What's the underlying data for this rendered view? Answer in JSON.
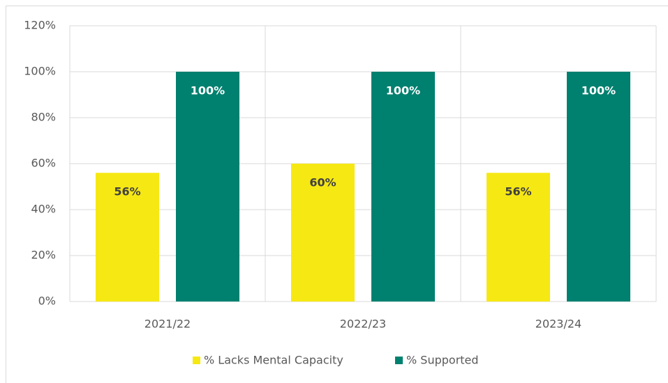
{
  "chart_data": {
    "type": "bar",
    "categories": [
      "2021/22",
      "2022/23",
      "2023/24"
    ],
    "series": [
      {
        "name": "% Lacks Mental Capacity",
        "color": "#f6e813",
        "values": [
          56,
          60,
          56
        ],
        "value_labels": [
          "56%",
          "60%",
          "56%"
        ]
      },
      {
        "name": "% Supported",
        "color": "#00806f",
        "values": [
          100,
          100,
          100
        ],
        "value_labels": [
          "100%",
          "100%",
          "100%"
        ]
      }
    ],
    "ylim": [
      0,
      120
    ],
    "yticks": [
      {
        "value": 0,
        "label": "0%"
      },
      {
        "value": 20,
        "label": "20%"
      },
      {
        "value": 40,
        "label": "40%"
      },
      {
        "value": 60,
        "label": "60%"
      },
      {
        "value": 80,
        "label": "80%"
      },
      {
        "value": 100,
        "label": "100%"
      },
      {
        "value": 120,
        "label": "120%"
      }
    ],
    "grid": true,
    "legend": "bottom"
  }
}
